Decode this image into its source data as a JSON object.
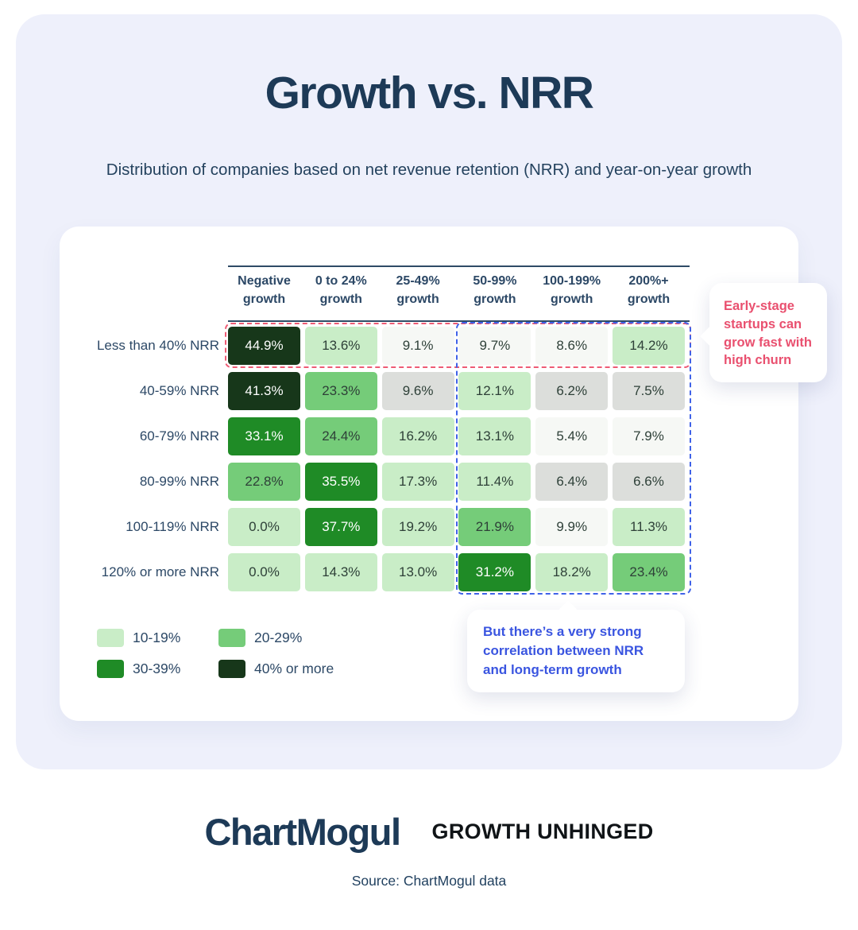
{
  "header": {
    "title": "Growth vs. NRR",
    "subtitle": "Distribution of companies based on net revenue retention (NRR) and year-on-year growth"
  },
  "chart_data": {
    "type": "heatmap",
    "title": "Growth vs. NRR",
    "columns": [
      "Negative growth",
      "0 to 24% growth",
      "25-49% growth",
      "50-99% growth",
      "100-199% growth",
      "200%+ growth"
    ],
    "rows": [
      "Less than 40% NRR",
      "40-59% NRR",
      "60-79% NRR",
      "80-99% NRR",
      "100-119% NRR",
      "120% or more NRR"
    ],
    "values": [
      [
        44.9,
        13.6,
        9.1,
        9.7,
        8.6,
        14.2
      ],
      [
        41.3,
        23.3,
        9.6,
        12.1,
        6.2,
        7.5
      ],
      [
        33.1,
        24.4,
        16.2,
        13.1,
        5.4,
        7.9
      ],
      [
        22.8,
        35.5,
        17.3,
        11.4,
        6.4,
        6.6
      ],
      [
        0.0,
        37.7,
        19.2,
        21.9,
        9.9,
        11.3
      ],
      [
        0.0,
        14.3,
        13.0,
        31.2,
        18.2,
        23.4
      ]
    ],
    "value_suffix": "%",
    "levels": [
      [
        "darkest",
        "light",
        "neutral",
        "neutral",
        "neutral",
        "light"
      ],
      [
        "darkest",
        "medium",
        "gray",
        "light",
        "gray",
        "gray"
      ],
      [
        "dark",
        "medium",
        "light",
        "light",
        "neutral",
        "neutral"
      ],
      [
        "medium",
        "dark",
        "light",
        "light",
        "gray",
        "gray"
      ],
      [
        "light",
        "dark",
        "light",
        "medium",
        "neutral",
        "light"
      ],
      [
        "light",
        "light",
        "light",
        "dark",
        "light",
        "medium"
      ]
    ],
    "palette": {
      "darkest": "#17371a",
      "dark": "#1f8b26",
      "medium": "#75cc79",
      "light": "#c9edc7",
      "neutral": "#f6f8f5",
      "gray": "#dcdedb",
      "text_on_dark": "#ffffff",
      "text_on_light": "#2e4038"
    },
    "legend": [
      {
        "label": "10-19%",
        "level": "light"
      },
      {
        "label": "20-29%",
        "level": "medium"
      },
      {
        "label": "30-39%",
        "level": "dark"
      },
      {
        "label": "40% or more",
        "level": "darkest"
      }
    ],
    "annotations": [
      {
        "text": "Early-stage startups can grow fast with high churn",
        "text_color": "#e9506f",
        "box_color": "#ee5b74",
        "highlights": "first-row"
      },
      {
        "text": "But there’s a very strong correlation between NRR and long-term growth",
        "text_color": "#3a55e0",
        "box_color": "#3f62e8",
        "highlights": "high-growth-columns"
      }
    ]
  },
  "footer": {
    "brand": "ChartMogul",
    "tagline": "GROWTH UNHINGED",
    "source": "Source: ChartMogul data"
  }
}
